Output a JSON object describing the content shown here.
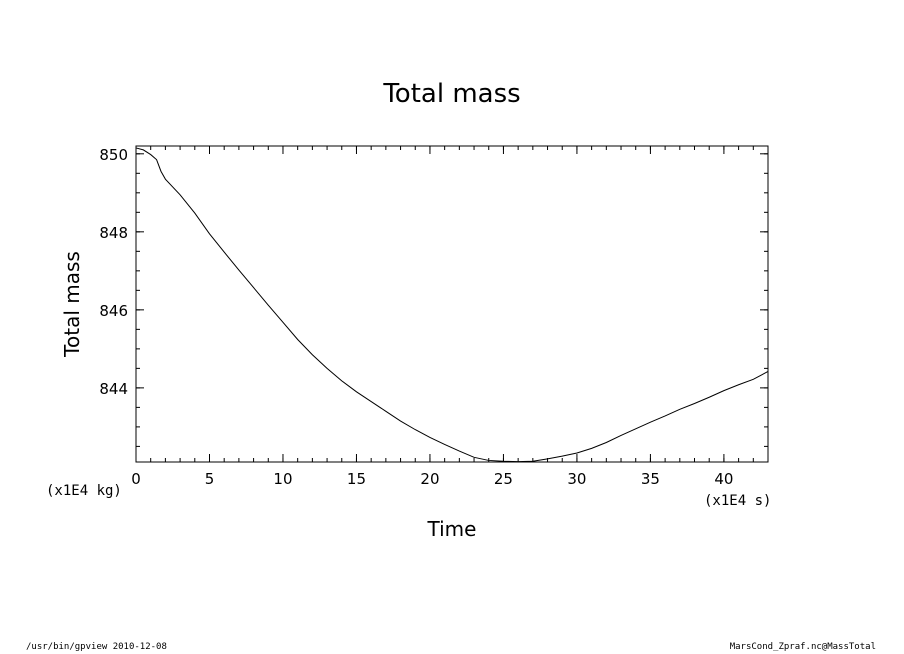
{
  "chart_data": {
    "type": "line",
    "title": "Total mass",
    "xlabel": "Time",
    "ylabel": "Total mass",
    "x_unit": "(x1E4 s)",
    "y_unit": "(x1E4 kg)",
    "xlim": [
      0,
      43
    ],
    "ylim": [
      842.1,
      850.2
    ],
    "x_ticks": [
      0,
      5,
      10,
      15,
      20,
      25,
      30,
      35,
      40
    ],
    "x_tick_labels": [
      "0",
      "5",
      "10",
      "15",
      "20",
      "25",
      "30",
      "35",
      "40"
    ],
    "y_ticks": [
      844,
      846,
      848,
      850
    ],
    "y_tick_labels": [
      "844",
      "846",
      "848",
      "850"
    ],
    "grid": false,
    "legend": "none",
    "series": [
      {
        "x": [
          0,
          0.5,
          1,
          1.4,
          1.7,
          2,
          3,
          4,
          5,
          6,
          7,
          8,
          9,
          10,
          11,
          12,
          13,
          14,
          15,
          16,
          17,
          18,
          19,
          20,
          21,
          22,
          23,
          24,
          25,
          26,
          27,
          28,
          29,
          30,
          31,
          32,
          33,
          34,
          35,
          36,
          37,
          38,
          39,
          40,
          41,
          42,
          43
        ],
        "values": [
          850.15,
          850.1,
          849.98,
          849.85,
          849.55,
          849.35,
          848.95,
          848.48,
          847.95,
          847.48,
          847.02,
          846.57,
          846.12,
          845.68,
          845.24,
          844.85,
          844.5,
          844.18,
          843.9,
          843.65,
          843.4,
          843.15,
          842.93,
          842.73,
          842.55,
          842.38,
          842.22,
          842.14,
          842.12,
          842.11,
          842.12,
          842.18,
          842.25,
          842.33,
          842.45,
          842.6,
          842.78,
          842.95,
          843.12,
          843.28,
          843.45,
          843.6,
          843.76,
          843.93,
          844.08,
          844.22,
          844.42
        ]
      }
    ],
    "color": "#000000"
  },
  "footer": {
    "left": "/usr/bin/gpview  2010-12-08",
    "right": "MarsCond_Zpraf.nc@MassTotal"
  }
}
